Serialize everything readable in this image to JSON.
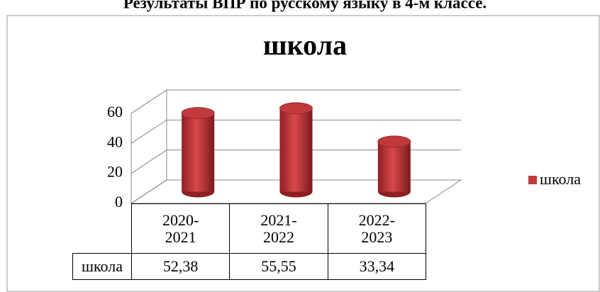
{
  "chart_data": {
    "type": "bar3d",
    "heading": "Результаты ВПР по русскому языку в 4-м классе.",
    "title": "школа",
    "categories": [
      "2020-2021",
      "2021-2022",
      "2022-2023"
    ],
    "series": [
      {
        "name": "школа",
        "color": "#c0393b",
        "values": [
          52.38,
          55.55,
          33.34
        ],
        "value_labels": [
          "52,38",
          "55,55",
          "33,34"
        ]
      }
    ],
    "ylim": [
      0,
      60
    ],
    "yticks": [
      0,
      20,
      40,
      60
    ],
    "grid": true,
    "legend": "right",
    "data_table": true
  }
}
